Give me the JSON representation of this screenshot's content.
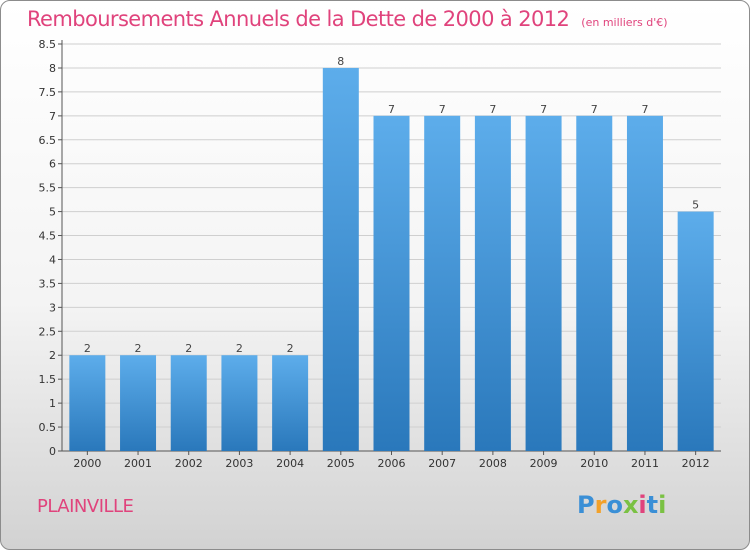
{
  "chart_data": {
    "type": "bar",
    "title": "Remboursements Annuels de la Dette de 2000 à 2012",
    "subtitle": "(en milliers d'€)",
    "xlabel": "",
    "ylabel": "",
    "categories": [
      "2000",
      "2001",
      "2002",
      "2003",
      "2004",
      "2005",
      "2006",
      "2007",
      "2008",
      "2009",
      "2010",
      "2011",
      "2012"
    ],
    "values": [
      2,
      2,
      2,
      2,
      2,
      8,
      7,
      7,
      7,
      7,
      7,
      7,
      5
    ],
    "data_labels": [
      "2",
      "2",
      "2",
      "2",
      "2",
      "8",
      "7",
      "7",
      "7",
      "7",
      "7",
      "7",
      "5"
    ],
    "ylim": [
      0,
      8.5
    ],
    "yticks": [
      "0",
      "0.5",
      "1",
      "1.5",
      "2",
      "2.5",
      "3",
      "3.5",
      "4",
      "4.5",
      "5",
      "5.5",
      "6",
      "6.5",
      "7",
      "7.5",
      "8",
      "8.5"
    ],
    "grid": true,
    "bar_color": "#3d96dc"
  },
  "commune": "PLAINVILLE",
  "logo": {
    "letters": [
      "P",
      "r",
      "o",
      "x",
      "i",
      "t",
      "i"
    ]
  }
}
